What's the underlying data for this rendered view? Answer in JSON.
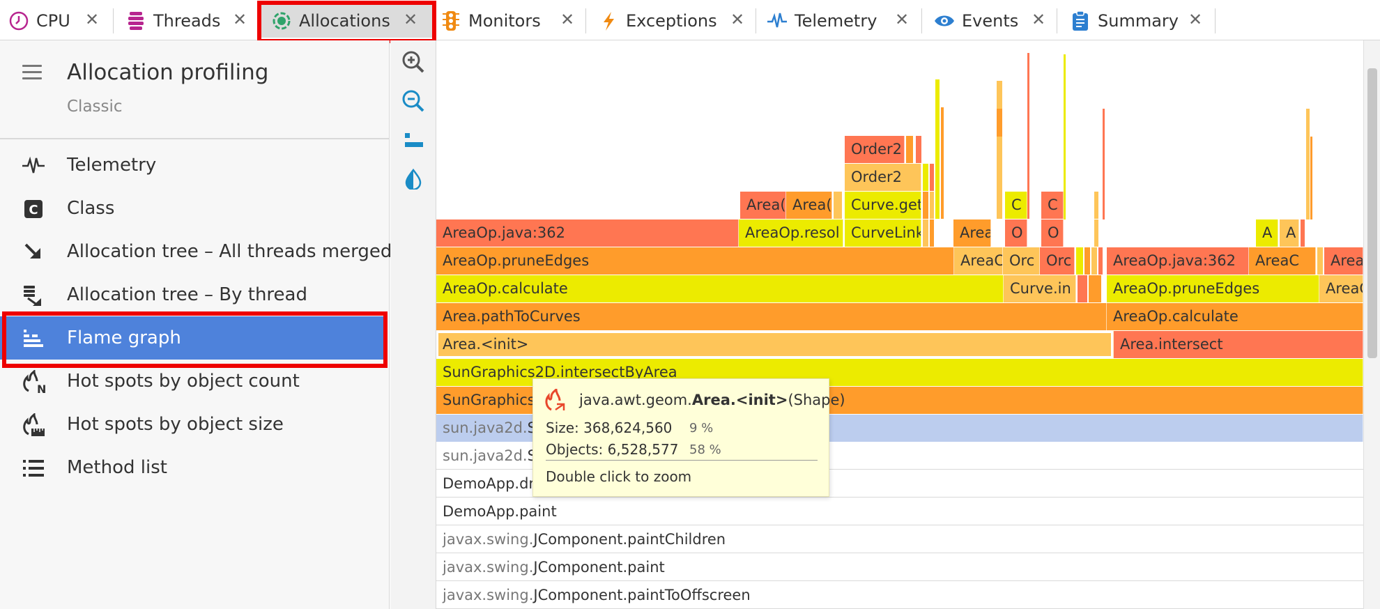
{
  "tabs": [
    {
      "label": "CPU",
      "icon": "clock-icon"
    },
    {
      "label": "Threads",
      "icon": "threads-icon"
    },
    {
      "label": "Allocations",
      "icon": "allocations-icon",
      "active": true
    },
    {
      "label": "Monitors",
      "icon": "traffic-light-icon"
    },
    {
      "label": "Exceptions",
      "icon": "lightning-icon"
    },
    {
      "label": "Telemetry",
      "icon": "pulse-icon"
    },
    {
      "label": "Events",
      "icon": "eye-icon"
    },
    {
      "label": "Summary",
      "icon": "clipboard-icon"
    }
  ],
  "sidebar": {
    "title": "Allocation profiling",
    "subtitle": "Classic",
    "items": [
      {
        "label": "Telemetry",
        "icon": "pulse-icon"
      },
      {
        "label": "Class",
        "icon": "class-icon"
      },
      {
        "label": "Allocation tree – All threads merged",
        "icon": "arrow-down-right-icon"
      },
      {
        "label": "Allocation tree – By thread",
        "icon": "tree-by-thread-icon"
      },
      {
        "label": "Flame graph",
        "icon": "flame-graph-icon",
        "selected": true
      },
      {
        "label": "Hot spots by object count",
        "icon": "hotspot-count-icon"
      },
      {
        "label": "Hot spots by object size",
        "icon": "hotspot-size-icon"
      },
      {
        "label": "Method list",
        "icon": "list-icon"
      }
    ]
  },
  "tools": [
    "zoom-in-icon",
    "zoom-out-icon",
    "reset-zoom-icon",
    "color-mode-icon"
  ],
  "flame": {
    "rows": {
      "r1": {
        "red": "AreaOp.java:362",
        "yellow": "AreaOp.resol",
        "yellow2": "CurveLink",
        "light": "Area",
        "o1": "O",
        "o2": "O",
        "a1": "A",
        "a2": "A",
        "rhs": "AreaOp.java:362",
        "rhs2": "AreaC",
        "rhs3": "Area"
      },
      "r2": {
        "main": "AreaOp.pruneEdges",
        "light": "AreaC",
        "ord1": "Orc",
        "ord2": "Orc",
        "rhs": "AreaOp.pruneEdges",
        "rhs2": "AreaC"
      },
      "r3": {
        "main": "AreaOp.calculate",
        "light": "Curve.in",
        "rhs": "AreaOp.calculate"
      },
      "r4": {
        "main": "Area.pathToCurves"
      },
      "r5": {
        "main": "Area.<init>",
        "rhs": "Area.intersect"
      },
      "r6": {
        "main": "SunGraphics2D.intersectByArea"
      },
      "r7": {
        "main": "SunGraphics2"
      },
      "r8": {
        "pkg": "sun.java2d.",
        "name": "Su"
      },
      "r9": {
        "pkg": "sun.java2d.",
        "name": "Su"
      },
      "r10": {
        "main": "DemoApp.dr"
      },
      "r11": {
        "main": "DemoApp.paint"
      },
      "r12": {
        "pkg": "javax.swing.",
        "name": "JComponent.paintChildren"
      },
      "r13": {
        "pkg": "javax.swing.",
        "name": "JComponent.paint"
      },
      "r14": {
        "pkg": "javax.swing.",
        "name": "JComponent.paintToOffscreen"
      },
      "upper": {
        "order1": "Order2",
        "order2": "Order2",
        "curveget": "Curve.get",
        "area1": "Area(",
        "area2": "Area(",
        "c1": "C",
        "c2": "C"
      }
    }
  },
  "tooltip": {
    "pkg": "java.awt.geom.",
    "cls": "Area.<init>",
    "args": "(Shape)",
    "size_label": "Size: 368,624,560",
    "size_pct": "9 %",
    "objects_label": "Objects: 6,528,577",
    "objects_pct": "58 %",
    "hint": "Double click to zoom"
  }
}
